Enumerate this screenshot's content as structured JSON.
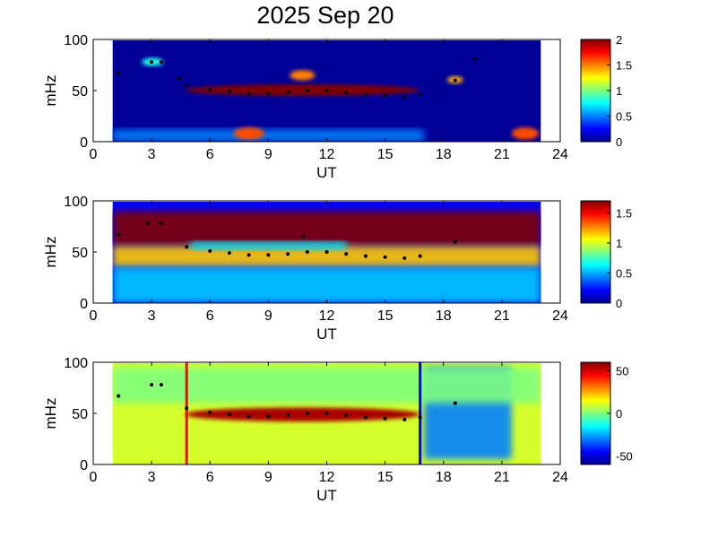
{
  "figure": {
    "title": "2025 Sep 20"
  },
  "chart_data": [
    {
      "type": "heatmap",
      "title": "2025 Sep 20",
      "xlabel": "UT",
      "ylabel": "mHz",
      "xlim": [
        0,
        24
      ],
      "ylim": [
        0,
        100
      ],
      "xticks": [
        "0",
        "3",
        "6",
        "9",
        "12",
        "15",
        "18",
        "21",
        "24"
      ],
      "yticks": [
        "0",
        "50",
        "100"
      ],
      "data_range_ut": [
        1,
        23
      ],
      "colorbar": {
        "range": [
          0,
          2
        ],
        "ticks": [
          "0",
          "0.5",
          "1",
          "1.5",
          "2"
        ]
      },
      "background_level": 0.05,
      "features": [
        {
          "label": "main ridge",
          "ut": [
            4.7,
            16.8
          ],
          "mhz": [
            45,
            56
          ],
          "level": 2.0
        },
        {
          "label": "low-frequency band",
          "ut": [
            1.0,
            17.0
          ],
          "mhz": [
            0,
            12
          ],
          "level": 0.5
        },
        {
          "label": "blob",
          "ut": [
            7.2,
            8.8
          ],
          "mhz": [
            2,
            14
          ],
          "level": 1.6
        },
        {
          "label": "blob",
          "ut": [
            10.1,
            11.4
          ],
          "mhz": [
            60,
            70
          ],
          "level": 1.5
        },
        {
          "label": "blob",
          "ut": [
            21.5,
            22.9
          ],
          "mhz": [
            2,
            14
          ],
          "level": 1.6
        },
        {
          "label": "blob",
          "ut": [
            2.5,
            3.6
          ],
          "mhz": [
            74,
            82
          ],
          "level": 0.8
        },
        {
          "label": "blob",
          "ut": [
            18.2,
            19.0
          ],
          "mhz": [
            57,
            64
          ],
          "level": 1.4
        }
      ],
      "markers": {
        "ridge_track": [
          [
            4.8,
            55
          ],
          [
            6,
            51
          ],
          [
            7,
            49
          ],
          [
            8,
            47
          ],
          [
            9,
            47
          ],
          [
            10,
            48
          ],
          [
            11,
            50
          ],
          [
            12,
            50
          ],
          [
            13,
            48
          ],
          [
            14,
            46
          ],
          [
            15,
            45
          ],
          [
            16,
            44
          ],
          [
            16.8,
            46
          ]
        ],
        "extra": [
          [
            1.3,
            67
          ],
          [
            3.0,
            78
          ],
          [
            3.5,
            78
          ],
          [
            4.4,
            62
          ],
          [
            18.6,
            60
          ],
          [
            19.6,
            81
          ]
        ]
      }
    },
    {
      "type": "heatmap",
      "xlabel": "UT",
      "ylabel": "mHz",
      "xlim": [
        0,
        24
      ],
      "ylim": [
        0,
        100
      ],
      "xticks": [
        "0",
        "3",
        "6",
        "9",
        "12",
        "15",
        "18",
        "21",
        "24"
      ],
      "yticks": [
        "0",
        "50",
        "100"
      ],
      "data_range_ut": [
        1,
        23
      ],
      "colorbar": {
        "range": [
          0,
          1.7
        ],
        "ticks": [
          "0",
          "0.5",
          "1",
          "1.5"
        ]
      },
      "background_level": 0.2,
      "features": [
        {
          "label": "high-frequency saturated region",
          "ut": [
            1,
            23
          ],
          "mhz": [
            56,
            90
          ],
          "level": 1.7
        },
        {
          "label": "mid band",
          "ut": [
            1,
            23
          ],
          "mhz": [
            35,
            56
          ],
          "level": 1.15
        },
        {
          "label": "cyan strip",
          "ut": [
            5,
            13
          ],
          "mhz": [
            52,
            60
          ],
          "level": 0.6
        },
        {
          "label": "low band",
          "ut": [
            1,
            23
          ],
          "mhz": [
            0,
            35
          ],
          "level": 0.55
        }
      ],
      "markers": {
        "ridge_track": [
          [
            4.8,
            55
          ],
          [
            6,
            51
          ],
          [
            7,
            49
          ],
          [
            8,
            47
          ],
          [
            9,
            47
          ],
          [
            10,
            48
          ],
          [
            11,
            50
          ],
          [
            12,
            50
          ],
          [
            13,
            48
          ],
          [
            14,
            46
          ],
          [
            15,
            45
          ],
          [
            16,
            44
          ],
          [
            16.8,
            46
          ]
        ],
        "extra": [
          [
            1.3,
            67
          ],
          [
            2.8,
            78
          ],
          [
            3.5,
            78
          ],
          [
            10.8,
            65
          ],
          [
            18.6,
            60
          ]
        ]
      }
    },
    {
      "type": "heatmap",
      "xlabel": "UT",
      "ylabel": "mHz",
      "xlim": [
        0,
        24
      ],
      "ylim": [
        0,
        100
      ],
      "xticks": [
        "0",
        "3",
        "6",
        "9",
        "12",
        "15",
        "18",
        "21",
        "24"
      ],
      "yticks": [
        "0",
        "50",
        "100"
      ],
      "data_range_ut": [
        1,
        23
      ],
      "colorbar": {
        "range": [
          -60,
          60
        ],
        "ticks": [
          "50",
          "0",
          "-50"
        ]
      },
      "background_level": 10,
      "vertical_lines": [
        {
          "ut": 4.8,
          "color": "#ff0000"
        },
        {
          "ut": 16.8,
          "color": "#0000ff"
        }
      ],
      "features": [
        {
          "label": "main ridge",
          "ut": [
            4.7,
            16.8
          ],
          "mhz": [
            42,
            56
          ],
          "level": 55
        },
        {
          "label": "post-event low band",
          "ut": [
            17,
            21.5
          ],
          "mhz": [
            5,
            95
          ],
          "level": -30
        },
        {
          "label": "noise region",
          "ut": [
            1,
            23
          ],
          "mhz": [
            60,
            95
          ],
          "level": 0
        }
      ],
      "markers": {
        "ridge_track": [
          [
            4.8,
            55
          ],
          [
            6,
            51
          ],
          [
            7,
            49
          ],
          [
            8,
            47
          ],
          [
            9,
            47
          ],
          [
            10,
            48
          ],
          [
            11,
            50
          ],
          [
            12,
            50
          ],
          [
            13,
            48
          ],
          [
            14,
            46
          ],
          [
            15,
            45
          ],
          [
            16,
            44
          ],
          [
            16.8,
            46
          ]
        ],
        "extra": [
          [
            1.3,
            67
          ],
          [
            3.0,
            78
          ],
          [
            3.5,
            78
          ],
          [
            18.6,
            60
          ]
        ]
      }
    }
  ]
}
